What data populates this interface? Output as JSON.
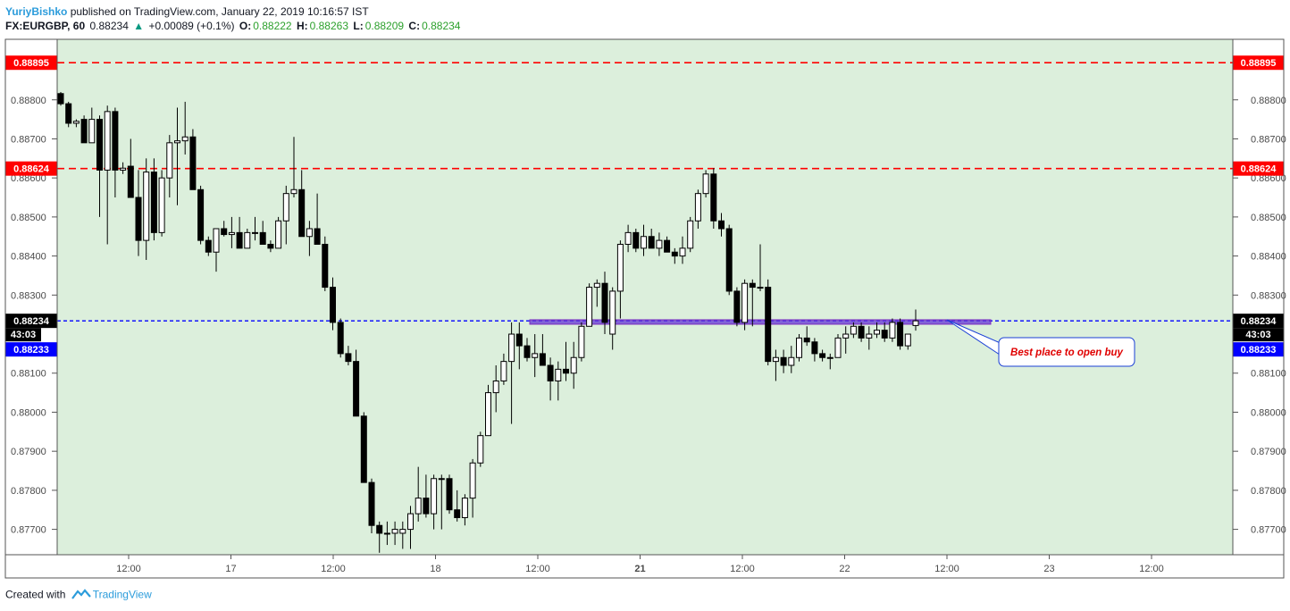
{
  "header": {
    "author": "YuriyBishko",
    "published_text": "published on TradingView.com, January 22, 2019 10:16:57 IST",
    "symbol": "FX:EURGBP, 60",
    "last": "0.88234",
    "change": "+0.00089 (+0.1%)",
    "o_label": "O:",
    "o_value": "0.88222",
    "h_label": "H:",
    "h_value": "0.88263",
    "l_label": "L:",
    "l_value": "0.88209",
    "c_label": "C:",
    "c_value": "0.88234"
  },
  "footer": {
    "created_with": "Created with",
    "brand": "TradingView"
  },
  "colors": {
    "background": "#dcefdc",
    "resistance_line": "#ff0000",
    "price_line": "#0000ff",
    "zone": "#7b2cbf",
    "annotation_text": "#e00000"
  },
  "chart_data": {
    "type": "candlestick",
    "y_ticks": [
      "0.88800",
      "0.88700",
      "0.88600",
      "0.88500",
      "0.88400",
      "0.88300",
      "0.88100",
      "0.88000",
      "0.87900",
      "0.87800",
      "0.87700"
    ],
    "x_ticks": [
      "12:00",
      "17",
      "12:00",
      "18",
      "12:00",
      "21",
      "12:00",
      "22",
      "12:00",
      "23",
      "12:00"
    ],
    "ylim": [
      0.87635,
      0.88955
    ],
    "horizontal_lines": [
      {
        "label": "0.88895",
        "value": 0.88895,
        "style": "dashed",
        "color": "#ff0000"
      },
      {
        "label": "0.88624",
        "value": 0.88624,
        "style": "dashed",
        "color": "#ff0000"
      },
      {
        "label": "0.88234",
        "value": 0.88234,
        "style": "dashed",
        "color": "#0000ff"
      }
    ],
    "price_tags": {
      "last": "0.88234",
      "countdown": "43:03",
      "bid": "0.88233"
    },
    "zone": {
      "value": 0.88231
    },
    "annotation": "Best place to open buy",
    "candles": [
      [
        0.88816,
        0.8882,
        0.88785,
        0.8879
      ],
      [
        0.8879,
        0.88795,
        0.8873,
        0.8874
      ],
      [
        0.8874,
        0.8875,
        0.8873,
        0.88745
      ],
      [
        0.8875,
        0.8876,
        0.8869,
        0.8869
      ],
      [
        0.8869,
        0.8878,
        0.8869,
        0.8875
      ],
      [
        0.8875,
        0.8876,
        0.885,
        0.8862
      ],
      [
        0.8862,
        0.88785,
        0.8843,
        0.8877
      ],
      [
        0.8877,
        0.8878,
        0.8855,
        0.8862
      ],
      [
        0.8862,
        0.8864,
        0.8861,
        0.88625
      ],
      [
        0.8863,
        0.887,
        0.8855,
        0.8855
      ],
      [
        0.8855,
        0.8862,
        0.884,
        0.8844
      ],
      [
        0.8844,
        0.8865,
        0.8839,
        0.88615
      ],
      [
        0.88615,
        0.8865,
        0.8844,
        0.8846
      ],
      [
        0.8846,
        0.8862,
        0.8845,
        0.886
      ],
      [
        0.886,
        0.8871,
        0.8855,
        0.8869
      ],
      [
        0.8869,
        0.8878,
        0.8853,
        0.88695
      ],
      [
        0.88695,
        0.88795,
        0.8866,
        0.88705
      ],
      [
        0.88705,
        0.88725,
        0.8857,
        0.8857
      ],
      [
        0.8857,
        0.8858,
        0.8843,
        0.8844
      ],
      [
        0.8844,
        0.8845,
        0.884,
        0.8841
      ],
      [
        0.8841,
        0.8847,
        0.8836,
        0.8847
      ],
      [
        0.8847,
        0.8849,
        0.8845,
        0.88455
      ],
      [
        0.88455,
        0.885,
        0.8842,
        0.8846
      ],
      [
        0.8846,
        0.885,
        0.8842,
        0.8842
      ],
      [
        0.8842,
        0.8847,
        0.8842,
        0.8846
      ],
      [
        0.8846,
        0.885,
        0.8844,
        0.8846
      ],
      [
        0.8846,
        0.8849,
        0.8843,
        0.8843
      ],
      [
        0.8843,
        0.8844,
        0.8841,
        0.8842
      ],
      [
        0.8842,
        0.885,
        0.8842,
        0.8849
      ],
      [
        0.8849,
        0.8858,
        0.8843,
        0.8856
      ],
      [
        0.8856,
        0.88705,
        0.8855,
        0.8857
      ],
      [
        0.8857,
        0.8862,
        0.8845,
        0.8845
      ],
      [
        0.8845,
        0.8849,
        0.884,
        0.8847
      ],
      [
        0.8847,
        0.8856,
        0.8843,
        0.8843
      ],
      [
        0.8843,
        0.8845,
        0.8831,
        0.8832
      ],
      [
        0.8832,
        0.88345,
        0.8821,
        0.8823
      ],
      [
        0.8823,
        0.8824,
        0.8814,
        0.8815
      ],
      [
        0.8815,
        0.8817,
        0.8812,
        0.8813
      ],
      [
        0.8813,
        0.8816,
        0.8799,
        0.8799
      ],
      [
        0.8799,
        0.88,
        0.8782,
        0.8782
      ],
      [
        0.8782,
        0.8783,
        0.8769,
        0.8771
      ],
      [
        0.8771,
        0.8772,
        0.8764,
        0.8769
      ],
      [
        0.8769,
        0.8772,
        0.8766,
        0.8769
      ],
      [
        0.8769,
        0.8772,
        0.8766,
        0.877
      ],
      [
        0.8769,
        0.8772,
        0.8765,
        0.877
      ],
      [
        0.877,
        0.8776,
        0.8765,
        0.8774
      ],
      [
        0.8774,
        0.8786,
        0.8772,
        0.8778
      ],
      [
        0.8778,
        0.8784,
        0.8773,
        0.8774
      ],
      [
        0.8774,
        0.8784,
        0.877,
        0.8783
      ],
      [
        0.8783,
        0.8784,
        0.877,
        0.8783
      ],
      [
        0.8783,
        0.8784,
        0.8774,
        0.8775
      ],
      [
        0.8775,
        0.878,
        0.8772,
        0.8773
      ],
      [
        0.8773,
        0.8779,
        0.8771,
        0.8778
      ],
      [
        0.8778,
        0.8788,
        0.8773,
        0.8787
      ],
      [
        0.8787,
        0.8795,
        0.8786,
        0.8794
      ],
      [
        0.8794,
        0.8807,
        0.8794,
        0.8805
      ],
      [
        0.8805,
        0.8812,
        0.88,
        0.8808
      ],
      [
        0.8808,
        0.8815,
        0.8807,
        0.8813
      ],
      [
        0.8813,
        0.8823,
        0.8797,
        0.882
      ],
      [
        0.882,
        0.8823,
        0.8811,
        0.8817
      ],
      [
        0.8817,
        0.8819,
        0.8813,
        0.8814
      ],
      [
        0.8814,
        0.882,
        0.8809,
        0.8815
      ],
      [
        0.8815,
        0.882,
        0.8812,
        0.8812
      ],
      [
        0.8812,
        0.8814,
        0.8803,
        0.8808
      ],
      [
        0.8808,
        0.8813,
        0.8803,
        0.8811
      ],
      [
        0.8811,
        0.8818,
        0.8808,
        0.881
      ],
      [
        0.881,
        0.8818,
        0.8806,
        0.8814
      ],
      [
        0.8814,
        0.8823,
        0.8813,
        0.8822
      ],
      [
        0.8822,
        0.8833,
        0.8822,
        0.8832
      ],
      [
        0.8832,
        0.8834,
        0.8827,
        0.8833
      ],
      [
        0.8833,
        0.8836,
        0.882,
        0.8823
      ],
      [
        0.882,
        0.8832,
        0.8816,
        0.8831
      ],
      [
        0.8831,
        0.8844,
        0.8824,
        0.8843
      ],
      [
        0.8843,
        0.8848,
        0.8841,
        0.8846
      ],
      [
        0.8846,
        0.8847,
        0.8841,
        0.8842
      ],
      [
        0.8842,
        0.8848,
        0.884,
        0.8845
      ],
      [
        0.8845,
        0.8847,
        0.8842,
        0.8842
      ],
      [
        0.8842,
        0.8846,
        0.884,
        0.8844
      ],
      [
        0.8844,
        0.8845,
        0.8841,
        0.8841
      ],
      [
        0.8841,
        0.8842,
        0.8838,
        0.884
      ],
      [
        0.884,
        0.8845,
        0.8838,
        0.8842
      ],
      [
        0.8842,
        0.885,
        0.8841,
        0.8849
      ],
      [
        0.8849,
        0.8857,
        0.8847,
        0.8856
      ],
      [
        0.8856,
        0.8862,
        0.8855,
        0.8861
      ],
      [
        0.8861,
        0.88625,
        0.8847,
        0.8849
      ],
      [
        0.8849,
        0.8851,
        0.8845,
        0.8847
      ],
      [
        0.8847,
        0.8848,
        0.883,
        0.8831
      ],
      [
        0.8831,
        0.8832,
        0.8822,
        0.8823
      ],
      [
        0.8823,
        0.8834,
        0.8821,
        0.8833
      ],
      [
        0.8833,
        0.8834,
        0.8822,
        0.8832
      ],
      [
        0.8832,
        0.8843,
        0.8831,
        0.8832
      ],
      [
        0.8832,
        0.8834,
        0.8812,
        0.8813
      ],
      [
        0.8813,
        0.8816,
        0.8808,
        0.8814
      ],
      [
        0.8814,
        0.8816,
        0.881,
        0.8812
      ],
      [
        0.8812,
        0.8817,
        0.881,
        0.8814
      ],
      [
        0.8814,
        0.882,
        0.8813,
        0.8819
      ],
      [
        0.8819,
        0.8822,
        0.8817,
        0.8818
      ],
      [
        0.8818,
        0.8819,
        0.8813,
        0.8815
      ],
      [
        0.8815,
        0.8816,
        0.8813,
        0.8814
      ],
      [
        0.8814,
        0.8815,
        0.8811,
        0.8814
      ],
      [
        0.8814,
        0.882,
        0.8814,
        0.8819
      ],
      [
        0.8819,
        0.8822,
        0.8815,
        0.882
      ],
      [
        0.882,
        0.8823,
        0.8819,
        0.8822
      ],
      [
        0.8822,
        0.8823,
        0.8818,
        0.8819
      ],
      [
        0.8819,
        0.8822,
        0.8816,
        0.882
      ],
      [
        0.882,
        0.8823,
        0.8819,
        0.8821
      ],
      [
        0.8821,
        0.8823,
        0.8818,
        0.8819
      ],
      [
        0.8819,
        0.8824,
        0.8818,
        0.8823
      ],
      [
        0.8823,
        0.8824,
        0.8816,
        0.8817
      ],
      [
        0.8817,
        0.882,
        0.8816,
        0.882
      ],
      [
        0.88222,
        0.88263,
        0.88209,
        0.88234
      ]
    ]
  }
}
